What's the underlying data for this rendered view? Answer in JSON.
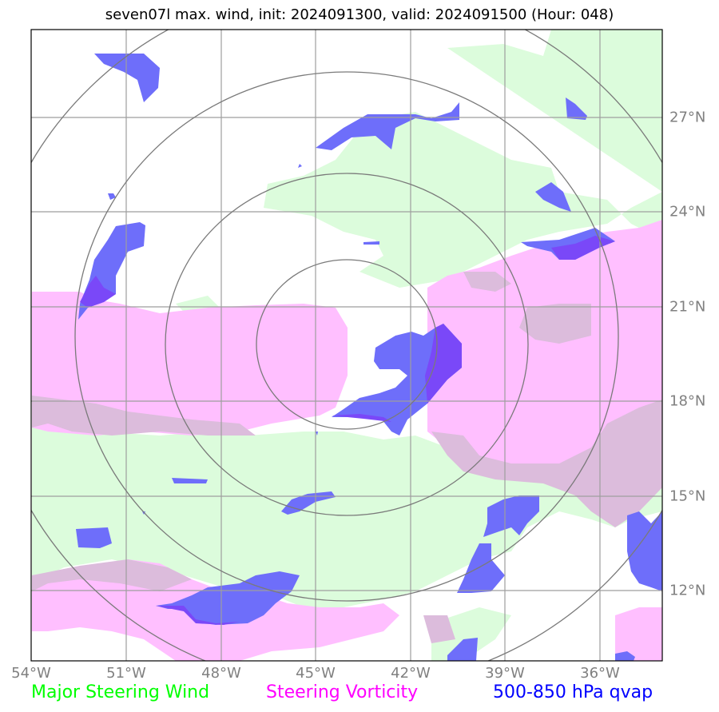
{
  "title": "seven07l max. wind, init: 2024091300, valid: 2024091500 (Hour: 048)",
  "lon_labels": [
    "54°W",
    "51°W",
    "48°W",
    "45°W",
    "42°W",
    "39°W",
    "36°W"
  ],
  "lat_labels": [
    "27°N",
    "24°N",
    "21°N",
    "18°N",
    "15°N",
    "12°N"
  ],
  "legend": {
    "steering_wind": {
      "label": "Major Steering Wind",
      "color": "#00ff00"
    },
    "vorticity": {
      "label": "Steering Vorticity",
      "color": "#ff00ff"
    },
    "qvap": {
      "label": "500-850 hPa qvap",
      "color": "#0000ff"
    }
  },
  "colors": {
    "wind_fill": "#dcfcdc",
    "vort_fill": "#ffbfff",
    "vort_dark_fill": "#dcbcdc",
    "qvap_fill": "#6e6efa",
    "qvap_dark": "#7a48f8",
    "grid": "#9e9e9e",
    "rings": "#7a7a7a"
  }
}
